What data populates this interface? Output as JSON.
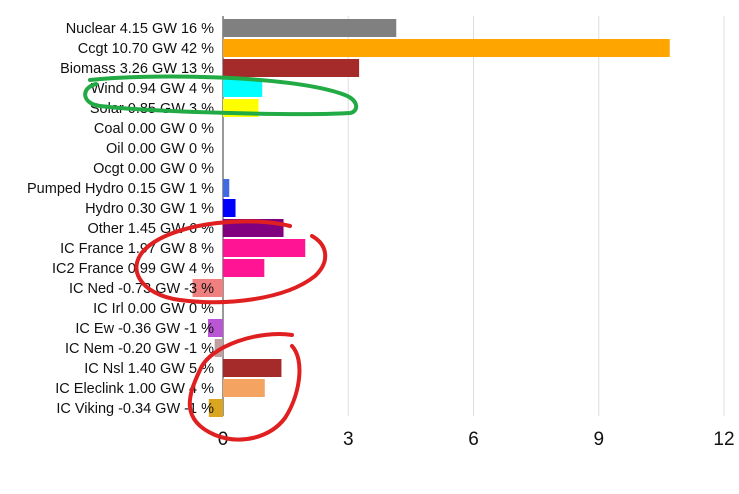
{
  "chart_data": {
    "type": "bar",
    "orientation": "horizontal",
    "xlim": [
      -0.73,
      12
    ],
    "xticks": [
      0,
      3,
      6,
      9,
      12
    ],
    "grid": true,
    "categories": [
      "Nuclear 4.15 GW 16 %",
      "Ccgt 10.70 GW 42 %",
      "Biomass 3.26 GW 13 %",
      "Wind 0.94 GW 4 %",
      "Solar 0.85 GW 3 %",
      "Coal 0.00 GW 0 %",
      "Oil 0.00 GW 0 %",
      "Ocgt 0.00 GW 0 %",
      "Pumped Hydro 0.15 GW 1 %",
      "Hydro 0.30 GW 1 %",
      "Other 1.45 GW 6 %",
      "IC France 1.97 GW 8 %",
      "IC2 France 0.99 GW 4 %",
      "IC Ned -0.73 GW -3 %",
      "IC Irl 0.00 GW 0 %",
      "IC Ew -0.36 GW -1 %",
      "IC Nem -0.20 GW -1 %",
      "IC Nsl 1.40 GW 5 %",
      "IC Eleclink 1.00 GW 4 %",
      "IC Viking -0.34 GW -1 %"
    ],
    "values": [
      4.15,
      10.7,
      3.26,
      0.94,
      0.85,
      0.0,
      0.0,
      0.0,
      0.15,
      0.3,
      1.45,
      1.97,
      0.99,
      -0.73,
      0.0,
      -0.36,
      -0.2,
      1.4,
      1.0,
      -0.34
    ],
    "colors": [
      "#808080",
      "#ffa500",
      "#a52a2a",
      "#00ffff",
      "#ffff00",
      "#000000",
      "#000000",
      "#000000",
      "#4169e1",
      "#0000ff",
      "#800080",
      "#ff1493",
      "#ff1493",
      "#f08080",
      "#000000",
      "#ba55d3",
      "#c0a0a0",
      "#a52a2a",
      "#f4a460",
      "#daa520"
    ]
  },
  "annotations": [
    {
      "shape": "freehand-loop",
      "color": "#22aa44",
      "around": [
        "Wind 0.94 GW 4 %",
        "Solar 0.85 GW 3 %"
      ]
    },
    {
      "shape": "freehand-loop",
      "color": "#e02020",
      "around": [
        "Other 1.45 GW 6 %",
        "IC France 1.97 GW 8 %",
        "IC2 France 0.99 GW 4 %",
        "IC Ned -0.73 GW -3 %",
        "IC Irl 0.00 GW 0 %"
      ]
    },
    {
      "shape": "freehand-loop",
      "color": "#e02020",
      "around": [
        "IC Nsl 1.40 GW 5 %",
        "IC Eleclink 1.00 GW 4 %",
        "IC Viking -0.34 GW -1 %"
      ]
    }
  ]
}
